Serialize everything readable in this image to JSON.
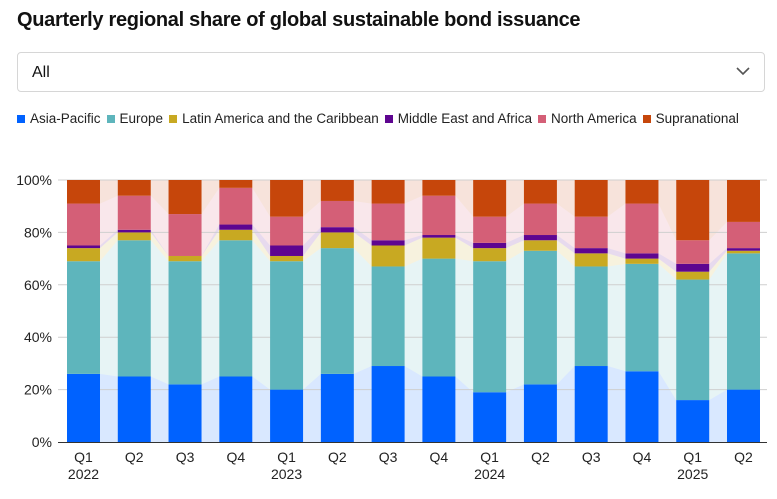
{
  "title": "Quarterly regional share of global sustainable bond issuance",
  "filter": {
    "selected": "All",
    "icon": "chevron-down-icon"
  },
  "colors": {
    "Asia-Pacific": "#0062ff",
    "Europe": "#5eb5bc",
    "Latin America and the Caribbean": "#c8a922",
    "Middle East and Africa": "#5e0590",
    "North America": "#d45f77",
    "Supranational": "#c6460b"
  },
  "chart_data": {
    "type": "bar",
    "stacked": true,
    "normalized": true,
    "title": "Quarterly regional share of global sustainable bond issuance",
    "xlabel": "",
    "ylabel": "",
    "ylim": [
      0,
      100
    ],
    "yticks": [
      "0%",
      "20%",
      "40%",
      "60%",
      "80%",
      "100%"
    ],
    "ytick_values": [
      0,
      20,
      40,
      60,
      80,
      100
    ],
    "grid": true,
    "legend_position": "top-left",
    "categories": [
      "Q1 2022",
      "Q2 2022",
      "Q3 2022",
      "Q4 2022",
      "Q1 2023",
      "Q2 2023",
      "Q3 2023",
      "Q4 2023",
      "Q1 2024",
      "Q2 2024",
      "Q3 2024",
      "Q4 2024",
      "Q1 2025",
      "Q2 2025"
    ],
    "tick_labels": [
      {
        "q": "Q1",
        "year": "2022"
      },
      {
        "q": "Q2",
        "year": ""
      },
      {
        "q": "Q3",
        "year": ""
      },
      {
        "q": "Q4",
        "year": ""
      },
      {
        "q": "Q1",
        "year": "2023"
      },
      {
        "q": "Q2",
        "year": ""
      },
      {
        "q": "Q3",
        "year": ""
      },
      {
        "q": "Q4",
        "year": ""
      },
      {
        "q": "Q1",
        "year": "2024"
      },
      {
        "q": "Q2",
        "year": ""
      },
      {
        "q": "Q3",
        "year": ""
      },
      {
        "q": "Q4",
        "year": ""
      },
      {
        "q": "Q1",
        "year": "2025"
      },
      {
        "q": "Q2",
        "year": ""
      }
    ],
    "series": [
      {
        "name": "Asia-Pacific",
        "values": [
          26,
          25,
          22,
          25,
          20,
          26,
          29,
          25,
          19,
          22,
          29,
          27,
          16,
          20
        ]
      },
      {
        "name": "Europe",
        "values": [
          43,
          52,
          47,
          52,
          49,
          48,
          38,
          45,
          50,
          51,
          38,
          41,
          46,
          52
        ]
      },
      {
        "name": "Latin America and the Caribbean",
        "values": [
          5,
          3,
          2,
          4,
          2,
          6,
          8,
          8,
          5,
          4,
          5,
          2,
          3,
          1
        ]
      },
      {
        "name": "Middle East and Africa",
        "values": [
          1,
          1,
          0,
          2,
          4,
          2,
          2,
          1,
          2,
          2,
          2,
          2,
          3,
          1
        ]
      },
      {
        "name": "North America",
        "values": [
          16,
          13,
          16,
          14,
          11,
          10,
          14,
          15,
          10,
          12,
          12,
          19,
          9,
          10
        ]
      },
      {
        "name": "Supranational",
        "values": [
          9,
          6,
          13,
          3,
          14,
          8,
          9,
          6,
          14,
          9,
          14,
          9,
          23,
          16
        ]
      }
    ]
  }
}
